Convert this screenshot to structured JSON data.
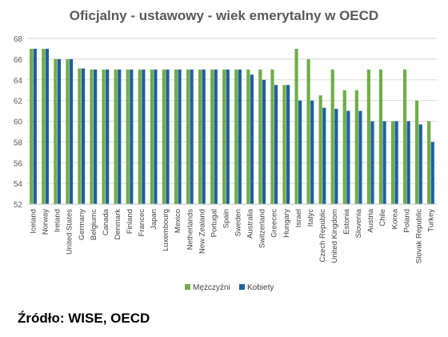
{
  "chart_data": {
    "type": "bar",
    "title": "Oficjalny - ustawowy - wiek emerytalny w OECD",
    "xlabel": "",
    "ylabel": "",
    "ylim": [
      52,
      68
    ],
    "yticks": [
      52,
      54,
      56,
      58,
      60,
      62,
      64,
      66,
      68
    ],
    "grid": true,
    "legend_position": "bottom",
    "categories": [
      "Iceland",
      "Norway",
      "Ireland",
      "United States",
      "Germany",
      "Belgiumc",
      "Canada",
      "Denmark",
      "Finland",
      "Francec",
      "Japan",
      "Luxembourg",
      "Mexico",
      "Netherlands",
      "New Zealand",
      "Portugal",
      "Spain",
      "Sweden",
      "Australia",
      "Switzerland",
      "Greecec",
      "Hungary",
      "Israel",
      "Italyc",
      "Czech Republic",
      "United Kingdom",
      "Estonia",
      "Slovenia",
      "Austria",
      "Chile",
      "Korea",
      "Poland",
      "Slovak Republic",
      "Turkey"
    ],
    "series": [
      {
        "name": "Mężczyźni",
        "color": "#70ad47",
        "values": [
          67,
          67,
          66,
          66,
          65.1,
          65,
          65,
          65,
          65,
          65,
          65,
          65,
          65,
          65,
          65,
          65,
          65,
          65,
          65,
          65,
          65,
          63.5,
          67,
          66,
          62.5,
          65,
          63,
          63,
          65,
          65,
          60,
          65,
          62,
          60
        ]
      },
      {
        "name": "Kobiety",
        "color": "#1f5fa0",
        "values": [
          67,
          67,
          66,
          66,
          65.1,
          65,
          65,
          65,
          65,
          65,
          65,
          65,
          65,
          65,
          65,
          65,
          65,
          65,
          64.5,
          64,
          63.5,
          63.5,
          62,
          62,
          61.3,
          61.2,
          61,
          61,
          60,
          60,
          60,
          60,
          59.7,
          58
        ]
      }
    ]
  },
  "source_label": "Źródło: WISE, OECD"
}
